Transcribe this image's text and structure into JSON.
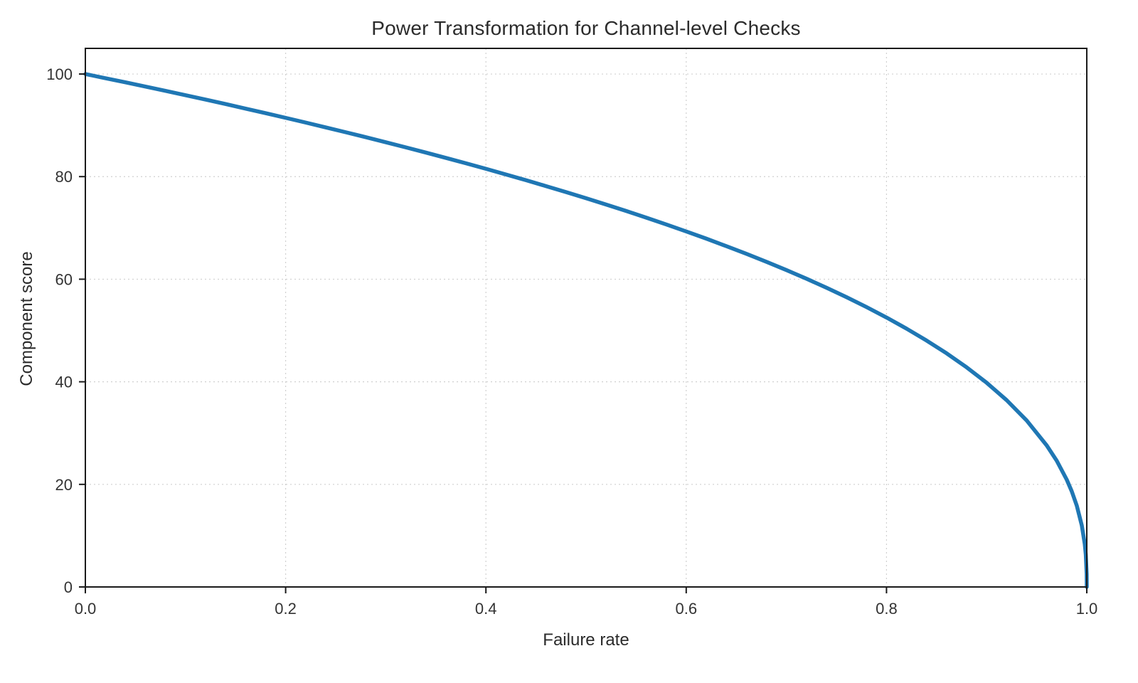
{
  "chart_data": {
    "type": "line",
    "title": "Power Transformation for Channel-level Checks",
    "xlabel": "Failure rate",
    "ylabel": "Component score",
    "xlim": [
      0,
      1
    ],
    "ylim": [
      0,
      105
    ],
    "grid": {
      "on": true,
      "style": "dotted",
      "color": "#d0d0d0"
    },
    "legend": "none",
    "xticks": [
      0.0,
      0.2,
      0.4,
      0.6,
      0.8,
      1.0
    ],
    "xtick_labels": [
      "0.0",
      "0.2",
      "0.4",
      "0.6",
      "0.8",
      "1.0"
    ],
    "yticks": [
      0,
      20,
      40,
      60,
      80,
      100
    ],
    "ytick_labels": [
      "0",
      "20",
      "40",
      "60",
      "80",
      "100"
    ],
    "series": [
      {
        "name": "component-score-curve",
        "color": "#1f77b4",
        "linewidth": 5.5,
        "points": [
          [
            0,
            100
          ],
          [
            0.02,
            99.19
          ],
          [
            0.04,
            98.38
          ],
          [
            0.06,
            97.56
          ],
          [
            0.08,
            96.72
          ],
          [
            0.1,
            95.87
          ],
          [
            0.12,
            95.02
          ],
          [
            0.14,
            94.15
          ],
          [
            0.16,
            93.26
          ],
          [
            0.18,
            92.37
          ],
          [
            0.2,
            91.46
          ],
          [
            0.22,
            90.54
          ],
          [
            0.24,
            89.6
          ],
          [
            0.26,
            88.65
          ],
          [
            0.28,
            87.69
          ],
          [
            0.3,
            86.7
          ],
          [
            0.32,
            85.7
          ],
          [
            0.34,
            84.69
          ],
          [
            0.36,
            83.65
          ],
          [
            0.38,
            82.6
          ],
          [
            0.4,
            81.52
          ],
          [
            0.42,
            80.42
          ],
          [
            0.44,
            79.3
          ],
          [
            0.46,
            78.15
          ],
          [
            0.48,
            76.98
          ],
          [
            0.5,
            75.79
          ],
          [
            0.52,
            74.56
          ],
          [
            0.54,
            73.3
          ],
          [
            0.56,
            72.01
          ],
          [
            0.58,
            70.68
          ],
          [
            0.6,
            69.31
          ],
          [
            0.62,
            67.91
          ],
          [
            0.64,
            66.45
          ],
          [
            0.66,
            64.95
          ],
          [
            0.68,
            63.4
          ],
          [
            0.7,
            61.78
          ],
          [
            0.72,
            60.1
          ],
          [
            0.74,
            58.34
          ],
          [
            0.76,
            56.5
          ],
          [
            0.78,
            54.57
          ],
          [
            0.8,
            52.53
          ],
          [
            0.82,
            50.36
          ],
          [
            0.84,
            48.04
          ],
          [
            0.86,
            45.55
          ],
          [
            0.88,
            42.82
          ],
          [
            0.9,
            39.81
          ],
          [
            0.92,
            36.41
          ],
          [
            0.94,
            32.45
          ],
          [
            0.96,
            27.59
          ],
          [
            0.97,
            24.6
          ],
          [
            0.98,
            20.91
          ],
          [
            0.985,
            18.64
          ],
          [
            0.99,
            15.85
          ],
          [
            0.995,
            12.01
          ],
          [
            0.998,
            8.33
          ],
          [
            0.999,
            6.31
          ],
          [
            0.9999,
            2.51
          ],
          [
            1,
            0
          ]
        ]
      }
    ]
  }
}
